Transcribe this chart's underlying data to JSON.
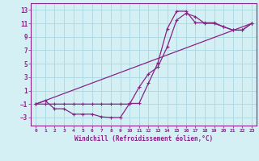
{
  "xlabel": "Windchill (Refroidissement éolien,°C)",
  "bg_color": "#d4f0f5",
  "grid_color": "#aad8e0",
  "line_color": "#882288",
  "xlim": [
    -0.5,
    23.5
  ],
  "ylim": [
    -4.2,
    14.0
  ],
  "xticks": [
    0,
    1,
    2,
    3,
    4,
    5,
    6,
    7,
    8,
    9,
    10,
    11,
    12,
    13,
    14,
    15,
    16,
    17,
    18,
    19,
    20,
    21,
    22,
    23
  ],
  "yticks": [
    -3,
    -1,
    1,
    3,
    5,
    7,
    9,
    11,
    13
  ],
  "line1_x": [
    0,
    1,
    2,
    3,
    4,
    5,
    6,
    7,
    8,
    9,
    10,
    11,
    12,
    13,
    14,
    15,
    16,
    17,
    18,
    19,
    20,
    21,
    22,
    23
  ],
  "line1_y": [
    -1,
    -0.5,
    -1.7,
    -1.7,
    -2.5,
    -2.5,
    -2.5,
    -2.9,
    -3.0,
    -3.0,
    -0.9,
    -0.9,
    2.1,
    5.1,
    10.2,
    12.8,
    12.8,
    11.1,
    11.1,
    11.1,
    10.5,
    10.0,
    10.0,
    11.0
  ],
  "line2_x": [
    0,
    1,
    2,
    3,
    4,
    5,
    6,
    7,
    8,
    9,
    10,
    11,
    12,
    13,
    14,
    15,
    16,
    17,
    18,
    19,
    20,
    21,
    22,
    23
  ],
  "line2_y": [
    -1,
    -1,
    -1,
    -1,
    -1,
    -1,
    -1,
    -1,
    -1,
    -1,
    -1,
    1.5,
    3.5,
    4.5,
    7.5,
    11.5,
    12.5,
    12.0,
    11.0,
    11.0,
    10.5,
    10.0,
    10.0,
    11.0
  ],
  "line3_x": [
    0,
    23
  ],
  "line3_y": [
    -1,
    11
  ]
}
